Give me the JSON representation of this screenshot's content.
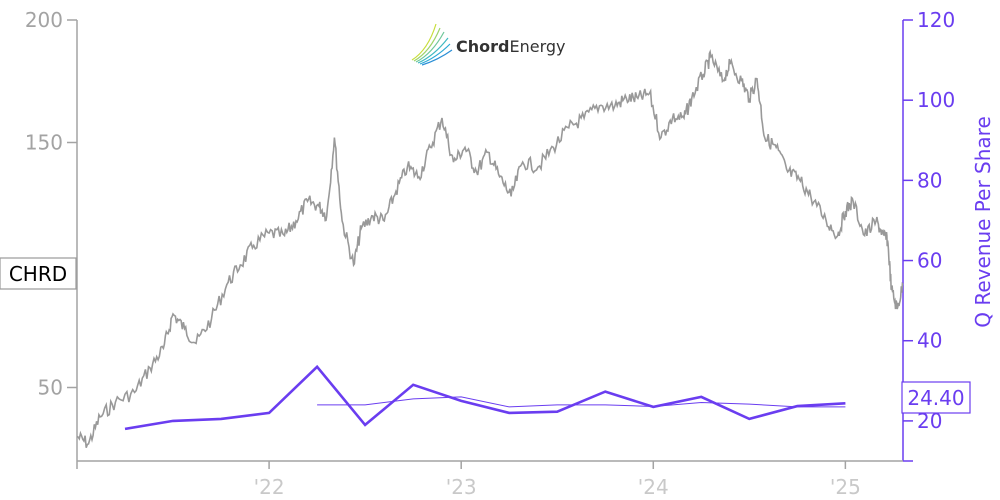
{
  "chart_data": {
    "type": "line",
    "logo": {
      "text_bold": "Chord",
      "text_light": "Energy"
    },
    "ticker": "CHRD",
    "ylabel_right": "Q Revenue Per Share",
    "last_value_label": "24.40",
    "left_axis": {
      "ylim": [
        20,
        200
      ],
      "ticks": [
        50,
        150,
        200
      ],
      "tick_labels": [
        "50",
        "150",
        "200"
      ]
    },
    "right_axis": {
      "ylim": [
        10,
        120
      ],
      "ticks": [
        20,
        40,
        60,
        80,
        100,
        120
      ],
      "tick_labels": [
        "20",
        "40",
        "60",
        "80",
        "100",
        "120"
      ]
    },
    "x_axis": {
      "range": [
        2021.0,
        2025.3
      ],
      "ticks": [
        2022,
        2023,
        2024,
        2025
      ],
      "tick_labels": [
        "'22",
        "'23",
        "'24",
        "'25"
      ]
    },
    "colors": {
      "price": "#999999",
      "revenue": "#6a3df0",
      "left_axis": "#a3a3a3",
      "right_axis": "#6a3df0",
      "x_axis": "#c9c9c9"
    },
    "series": [
      {
        "axis": "left",
        "x": [
          2021.0,
          2021.06,
          2021.12,
          2021.2,
          2021.3,
          2021.38,
          2021.45,
          2021.5,
          2021.56,
          2021.62,
          2021.7,
          2021.78,
          2021.85,
          2021.92,
          2022.0,
          2022.08,
          2022.14,
          2022.2,
          2022.26,
          2022.3,
          2022.34,
          2022.38,
          2022.44,
          2022.48,
          2022.54,
          2022.6,
          2022.66,
          2022.72,
          2022.78,
          2022.84,
          2022.9,
          2022.96,
          2023.02,
          2023.08,
          2023.14,
          2023.2,
          2023.26,
          2023.32,
          2023.4,
          2023.48,
          2023.56,
          2023.64,
          2023.72,
          2023.8,
          2023.86,
          2023.92,
          2023.98,
          2024.04,
          2024.1,
          2024.16,
          2024.2,
          2024.26,
          2024.3,
          2024.36,
          2024.4,
          2024.46,
          2024.5,
          2024.54,
          2024.58,
          2024.64,
          2024.7,
          2024.76,
          2024.82,
          2024.9,
          2024.96,
          2025.0,
          2025.04,
          2025.1,
          2025.16,
          2025.2,
          2025.22,
          2025.24,
          2025.27,
          2025.3
        ],
        "y": [
          30,
          27,
          38,
          44,
          48,
          58,
          66,
          80,
          74,
          68,
          78,
          92,
          100,
          108,
          113,
          112,
          118,
          126,
          124,
          120,
          152,
          118,
          100,
          115,
          120,
          118,
          130,
          140,
          136,
          148,
          160,
          142,
          148,
          138,
          146,
          136,
          128,
          142,
          140,
          148,
          156,
          160,
          165,
          165,
          168,
          168,
          170,
          152,
          160,
          160,
          168,
          178,
          185,
          175,
          182,
          175,
          168,
          176,
          152,
          148,
          138,
          135,
          128,
          118,
          112,
          122,
          126,
          112,
          118,
          112,
          110,
          90,
          82,
          92
        ]
      },
      {
        "axis": "right",
        "name": "",
        "x": [
          2021.25,
          2021.5,
          2021.75,
          2022.0,
          2022.25,
          2022.5,
          2022.75,
          2023.0,
          2023.25,
          2023.5,
          2023.75,
          2024.0,
          2024.25,
          2024.5,
          2024.75,
          2025.0
        ],
        "y": [
          18,
          20,
          20.5,
          22,
          33.5,
          19,
          29,
          25,
          22,
          22.3,
          27.3,
          23.5,
          26,
          20.5,
          23.7,
          24.4
        ]
      },
      {
        "axis": "right",
        "name": "",
        "x": [
          2022.25,
          2022.5,
          2022.75,
          2023.0,
          2023.25,
          2023.5,
          2023.75,
          2024.0,
          2024.25,
          2024.5,
          2024.75,
          2025.0
        ],
        "y": [
          24,
          24,
          25.5,
          26,
          23.5,
          24,
          24,
          23.6,
          24.6,
          24.2,
          23.5,
          23.5
        ]
      }
    ]
  }
}
